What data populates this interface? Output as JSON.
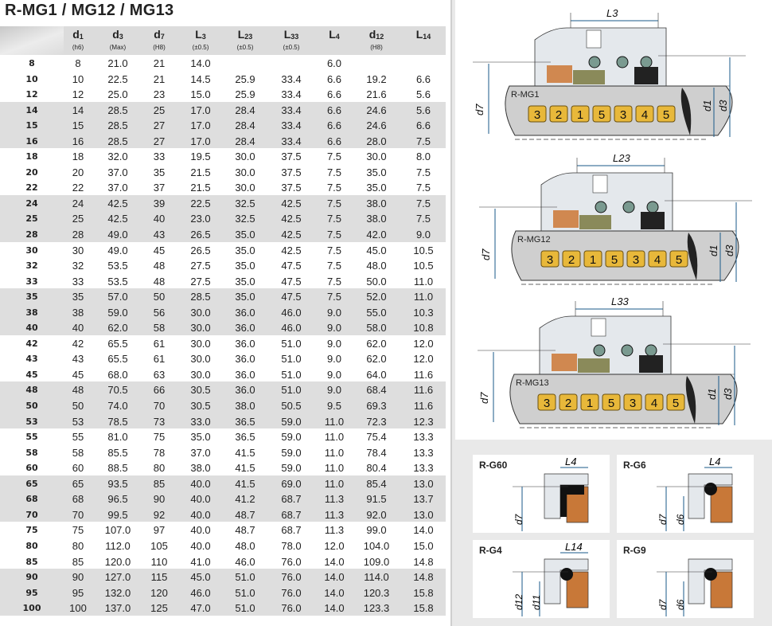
{
  "title": "R-MG1 / MG12 / MG13",
  "table": {
    "columns": [
      {
        "sym": "d",
        "sub": "1",
        "note": "(h6)"
      },
      {
        "sym": "d",
        "sub": "3",
        "note": "(Max)"
      },
      {
        "sym": "d",
        "sub": "7",
        "note": "(H8)"
      },
      {
        "sym": "L",
        "sub": "3",
        "note": "(±0.5)"
      },
      {
        "sym": "L",
        "sub": "23",
        "note": "(±0.5)"
      },
      {
        "sym": "L",
        "sub": "33",
        "note": "(±0.5)"
      },
      {
        "sym": "L",
        "sub": "4",
        "note": ""
      },
      {
        "sym": "d",
        "sub": "12",
        "note": "(H8)"
      },
      {
        "sym": "L",
        "sub": "14",
        "note": ""
      }
    ],
    "rows": [
      [
        "8",
        "8",
        "21.0",
        "21",
        "14.0",
        "",
        "",
        "6.0",
        "",
        ""
      ],
      [
        "10",
        "10",
        "22.5",
        "21",
        "14.5",
        "25.9",
        "33.4",
        "6.6",
        "19.2",
        "6.6"
      ],
      [
        "12",
        "12",
        "25.0",
        "23",
        "15.0",
        "25.9",
        "33.4",
        "6.6",
        "21.6",
        "5.6"
      ],
      [
        "14",
        "14",
        "28.5",
        "25",
        "17.0",
        "28.4",
        "33.4",
        "6.6",
        "24.6",
        "5.6"
      ],
      [
        "15",
        "15",
        "28.5",
        "27",
        "17.0",
        "28.4",
        "33.4",
        "6.6",
        "24.6",
        "6.6"
      ],
      [
        "16",
        "16",
        "28.5",
        "27",
        "17.0",
        "28.4",
        "33.4",
        "6.6",
        "28.0",
        "7.5"
      ],
      [
        "18",
        "18",
        "32.0",
        "33",
        "19.5",
        "30.0",
        "37.5",
        "7.5",
        "30.0",
        "8.0"
      ],
      [
        "20",
        "20",
        "37.0",
        "35",
        "21.5",
        "30.0",
        "37.5",
        "7.5",
        "35.0",
        "7.5"
      ],
      [
        "22",
        "22",
        "37.0",
        "37",
        "21.5",
        "30.0",
        "37.5",
        "7.5",
        "35.0",
        "7.5"
      ],
      [
        "24",
        "24",
        "42.5",
        "39",
        "22.5",
        "32.5",
        "42.5",
        "7.5",
        "38.0",
        "7.5"
      ],
      [
        "25",
        "25",
        "42.5",
        "40",
        "23.0",
        "32.5",
        "42.5",
        "7.5",
        "38.0",
        "7.5"
      ],
      [
        "28",
        "28",
        "49.0",
        "43",
        "26.5",
        "35.0",
        "42.5",
        "7.5",
        "42.0",
        "9.0"
      ],
      [
        "30",
        "30",
        "49.0",
        "45",
        "26.5",
        "35.0",
        "42.5",
        "7.5",
        "45.0",
        "10.5"
      ],
      [
        "32",
        "32",
        "53.5",
        "48",
        "27.5",
        "35.0",
        "47.5",
        "7.5",
        "48.0",
        "10.5"
      ],
      [
        "33",
        "33",
        "53.5",
        "48",
        "27.5",
        "35.0",
        "47.5",
        "7.5",
        "50.0",
        "11.0"
      ],
      [
        "35",
        "35",
        "57.0",
        "50",
        "28.5",
        "35.0",
        "47.5",
        "7.5",
        "52.0",
        "11.0"
      ],
      [
        "38",
        "38",
        "59.0",
        "56",
        "30.0",
        "36.0",
        "46.0",
        "9.0",
        "55.0",
        "10.3"
      ],
      [
        "40",
        "40",
        "62.0",
        "58",
        "30.0",
        "36.0",
        "46.0",
        "9.0",
        "58.0",
        "10.8"
      ],
      [
        "42",
        "42",
        "65.5",
        "61",
        "30.0",
        "36.0",
        "51.0",
        "9.0",
        "62.0",
        "12.0"
      ],
      [
        "43",
        "43",
        "65.5",
        "61",
        "30.0",
        "36.0",
        "51.0",
        "9.0",
        "62.0",
        "12.0"
      ],
      [
        "45",
        "45",
        "68.0",
        "63",
        "30.0",
        "36.0",
        "51.0",
        "9.0",
        "64.0",
        "11.6"
      ],
      [
        "48",
        "48",
        "70.5",
        "66",
        "30.5",
        "36.0",
        "51.0",
        "9.0",
        "68.4",
        "11.6"
      ],
      [
        "50",
        "50",
        "74.0",
        "70",
        "30.5",
        "38.0",
        "50.5",
        "9.5",
        "69.3",
        "11.6"
      ],
      [
        "53",
        "53",
        "78.5",
        "73",
        "33.0",
        "36.5",
        "59.0",
        "11.0",
        "72.3",
        "12.3"
      ],
      [
        "55",
        "55",
        "81.0",
        "75",
        "35.0",
        "36.5",
        "59.0",
        "11.0",
        "75.4",
        "13.3"
      ],
      [
        "58",
        "58",
        "85.5",
        "78",
        "37.0",
        "41.5",
        "59.0",
        "11.0",
        "78.4",
        "13.3"
      ],
      [
        "60",
        "60",
        "88.5",
        "80",
        "38.0",
        "41.5",
        "59.0",
        "11.0",
        "80.4",
        "13.3"
      ],
      [
        "65",
        "65",
        "93.5",
        "85",
        "40.0",
        "41.5",
        "69.0",
        "11.0",
        "85.4",
        "13.0"
      ],
      [
        "68",
        "68",
        "96.5",
        "90",
        "40.0",
        "41.2",
        "68.7",
        "11.3",
        "91.5",
        "13.7"
      ],
      [
        "70",
        "70",
        "99.5",
        "92",
        "40.0",
        "48.7",
        "68.7",
        "11.3",
        "92.0",
        "13.0"
      ],
      [
        "75",
        "75",
        "107.0",
        "97",
        "40.0",
        "48.7",
        "68.7",
        "11.3",
        "99.0",
        "14.0"
      ],
      [
        "80",
        "80",
        "112.0",
        "105",
        "40.0",
        "48.0",
        "78.0",
        "12.0",
        "104.0",
        "15.0"
      ],
      [
        "85",
        "85",
        "120.0",
        "110",
        "41.0",
        "46.0",
        "76.0",
        "14.0",
        "109.0",
        "14.8"
      ],
      [
        "90",
        "90",
        "127.0",
        "115",
        "45.0",
        "51.0",
        "76.0",
        "14.0",
        "114.0",
        "14.8"
      ],
      [
        "95",
        "95",
        "132.0",
        "120",
        "46.0",
        "51.0",
        "76.0",
        "14.0",
        "120.3",
        "15.8"
      ],
      [
        "100",
        "100",
        "137.0",
        "125",
        "47.0",
        "51.0",
        "76.0",
        "14.0",
        "123.3",
        "15.8"
      ]
    ]
  },
  "diagrams": [
    {
      "name": "R-MG1",
      "length": "L3",
      "parts": [
        "3",
        "2",
        "1",
        "5",
        "3",
        "4",
        "5"
      ],
      "d_left": "d7",
      "d_right1": "d1",
      "d_right2": "d3"
    },
    {
      "name": "R-MG12",
      "length": "L23",
      "parts": [
        "3",
        "2",
        "1",
        "5",
        "3",
        "4",
        "5"
      ],
      "d_left": "d7",
      "d_right1": "d1",
      "d_right2": "d3"
    },
    {
      "name": "R-MG13",
      "length": "L33",
      "parts": [
        "3",
        "2",
        "1",
        "5",
        "3",
        "4",
        "5"
      ],
      "d_left": "d7",
      "d_right1": "d1",
      "d_right2": "d3"
    }
  ],
  "seats": [
    {
      "name": "R-G60",
      "length": "L4",
      "dims": [
        "d7"
      ]
    },
    {
      "name": "R-G6",
      "length": "L4",
      "dims": [
        "d7",
        "d6"
      ]
    },
    {
      "name": "R-G4",
      "length": "L14",
      "dims": [
        "d12",
        "d11"
      ]
    },
    {
      "name": "R-G9",
      "length": "",
      "dims": [
        "d7",
        "d6"
      ]
    }
  ],
  "colors": {
    "badge": "#e8b83a",
    "shaft": "#cfcfcf",
    "seat": "#c87838",
    "face": "#8a8a5a",
    "dim": "#1a5a8a",
    "housing": "#e4e8ec"
  }
}
